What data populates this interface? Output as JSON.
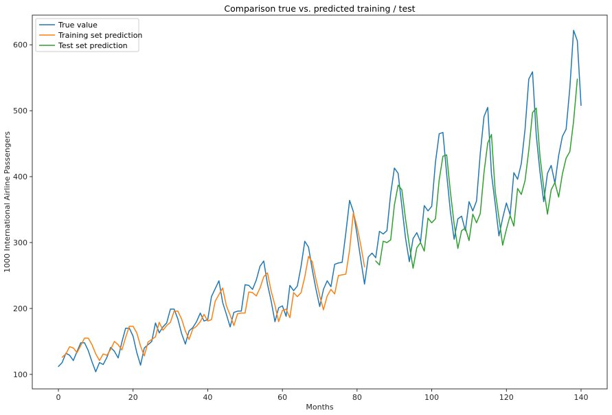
{
  "chart_data": {
    "type": "line",
    "title": "Comparison true vs. predicted training / test",
    "xlabel": "Months",
    "ylabel": "1000 International Airline Passengers",
    "xlim": [
      -7,
      147
    ],
    "ylim": [
      78,
      645
    ],
    "xticks": [
      0,
      20,
      40,
      60,
      80,
      100,
      120,
      140
    ],
    "yticks": [
      100,
      200,
      300,
      400,
      500,
      600
    ],
    "grid": false,
    "legend_position": "upper-left",
    "series": [
      {
        "name": "True value",
        "color": "#1f77b4",
        "x_start": 0,
        "values": [
          112,
          118,
          132,
          129,
          121,
          135,
          148,
          148,
          136,
          119,
          104,
          118,
          115,
          126,
          141,
          135,
          125,
          149,
          170,
          170,
          158,
          133,
          114,
          140,
          145,
          150,
          178,
          163,
          172,
          178,
          199,
          199,
          184,
          162,
          146,
          166,
          171,
          180,
          193,
          181,
          183,
          218,
          230,
          242,
          209,
          191,
          172,
          194,
          196,
          196,
          236,
          235,
          229,
          243,
          264,
          272,
          237,
          211,
          180,
          201,
          204,
          188,
          235,
          227,
          234,
          264,
          302,
          293,
          259,
          229,
          203,
          229,
          242,
          233,
          267,
          269,
          270,
          315,
          364,
          347,
          312,
          274,
          237,
          278,
          284,
          277,
          317,
          313,
          318,
          374,
          413,
          405,
          355,
          306,
          271,
          306,
          315,
          301,
          356,
          348,
          355,
          422,
          465,
          467,
          404,
          347,
          305,
          336,
          340,
          318,
          362,
          348,
          363,
          435,
          491,
          505,
          404,
          359,
          310,
          337,
          360,
          342,
          406,
          396,
          420,
          472,
          548,
          559,
          463,
          407,
          362,
          405,
          417,
          390,
          432,
          461,
          472,
          535,
          622,
          606,
          508
        ]
      },
      {
        "name": "Training set prediction",
        "color": "#ff7f0e",
        "x_start": 1,
        "values": [
          126,
          131,
          142,
          140,
          133,
          144,
          155,
          155,
          145,
          131,
          121,
          131,
          129,
          138,
          150,
          145,
          137,
          156,
          173,
          173,
          163,
          143,
          128,
          149,
          153,
          157,
          179,
          167,
          174,
          179,
          196,
          196,
          184,
          166,
          153,
          169,
          173,
          180,
          191,
          181,
          183,
          211,
          221,
          231,
          204,
          190,
          174,
          192,
          193,
          193,
          225,
          224,
          219,
          231,
          248,
          254,
          226,
          205,
          180,
          197,
          199,
          186,
          224,
          218,
          224,
          248,
          279,
          271,
          244,
          219,
          198,
          219,
          229,
          222,
          250,
          251,
          252,
          289,
          345,
          324,
          296,
          263
        ]
      },
      {
        "name": "Test set prediction",
        "color": "#2ca02c",
        "x_start": 85,
        "values": [
          272,
          266,
          302,
          300,
          304,
          357,
          387,
          380,
          335,
          296,
          261,
          292,
          300,
          287,
          337,
          330,
          336,
          395,
          431,
          433,
          377,
          328,
          291,
          318,
          322,
          303,
          343,
          330,
          344,
          406,
          451,
          464,
          378,
          338,
          296,
          320,
          341,
          325,
          382,
          373,
          394,
          440,
          497,
          504,
          431,
          383,
          343,
          380,
          391,
          369,
          404,
          428,
          438,
          484,
          548
        ]
      }
    ]
  }
}
